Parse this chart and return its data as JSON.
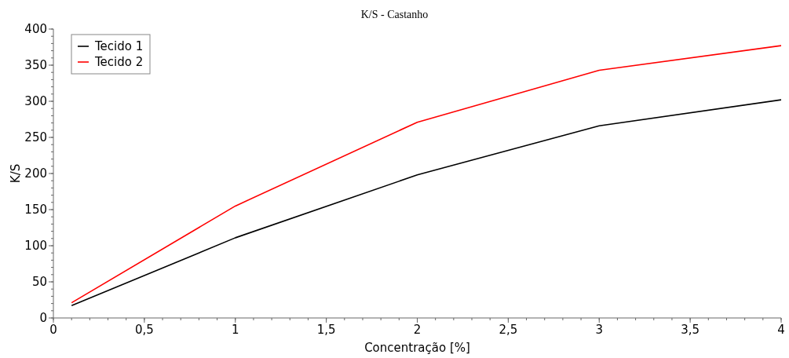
{
  "chart_data": {
    "type": "line",
    "title": "K/S - Castanho",
    "xlabel": "Concentração [%]",
    "ylabel": "K/S",
    "x": [
      0.1,
      1,
      2,
      3,
      4
    ],
    "series": [
      {
        "name": "Tecido 1",
        "color": "#000000",
        "values": [
          17,
          111,
          198,
          266,
          302
        ]
      },
      {
        "name": "Tecido 2",
        "color": "#ff0000",
        "values": [
          21,
          155,
          271,
          343,
          377
        ]
      }
    ],
    "xlim": [
      0,
      4
    ],
    "xticks": [
      0,
      {
        "value": 0.5,
        "label": "0,5"
      },
      1,
      {
        "value": 1.5,
        "label": "1,5"
      },
      2,
      {
        "value": 2.5,
        "label": "2,5"
      },
      3,
      {
        "value": 3.5,
        "label": "3,5"
      },
      4
    ],
    "ylim": [
      0,
      400
    ],
    "yticks": [
      0,
      50,
      100,
      150,
      200,
      250,
      300,
      350,
      400
    ],
    "legend": "top left",
    "grid": false,
    "marker": "none",
    "line_style": "solid"
  }
}
